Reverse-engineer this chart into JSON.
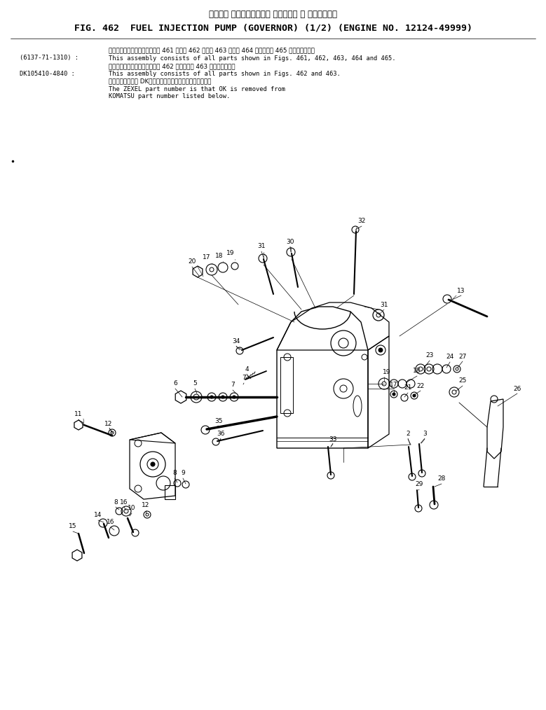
{
  "title_jp": "フェエル インジェクション ポンプ　ガ バ ナ　適用号機",
  "title_en": "FIG. 462  FUEL INJECTION PUMP (GOVERNOR) (1/2) (ENGINE NO. 12124-49999)",
  "note1_label": "(6137-71-1310) :",
  "note1_jp": "このアセンブリの構成部品は第 461 図、第 462 図、第 463 図、第 464 図および第 465 図を含みます。",
  "note1_en": "This assembly consists of all parts shown in Figs. 461, 462, 463, 464 and 465.",
  "note2_label": "DK105410-4840 :",
  "note2_jp": "このアセンブリの構成部品は第 462 図および第 463 図を含みます。",
  "note2_en": "This assembly consists of all parts shown in Figs. 462 and 463.",
  "note3_jp": "品番のメーカ記号 DKを除いたものがゼクセルの品番です。",
  "note3_en1": "The ZEXEL part number is that OK is removed from",
  "note3_en2": "KOMATSU part number listed below.",
  "bg_color": "#ffffff",
  "text_color": "#000000",
  "line_color": "#000000"
}
